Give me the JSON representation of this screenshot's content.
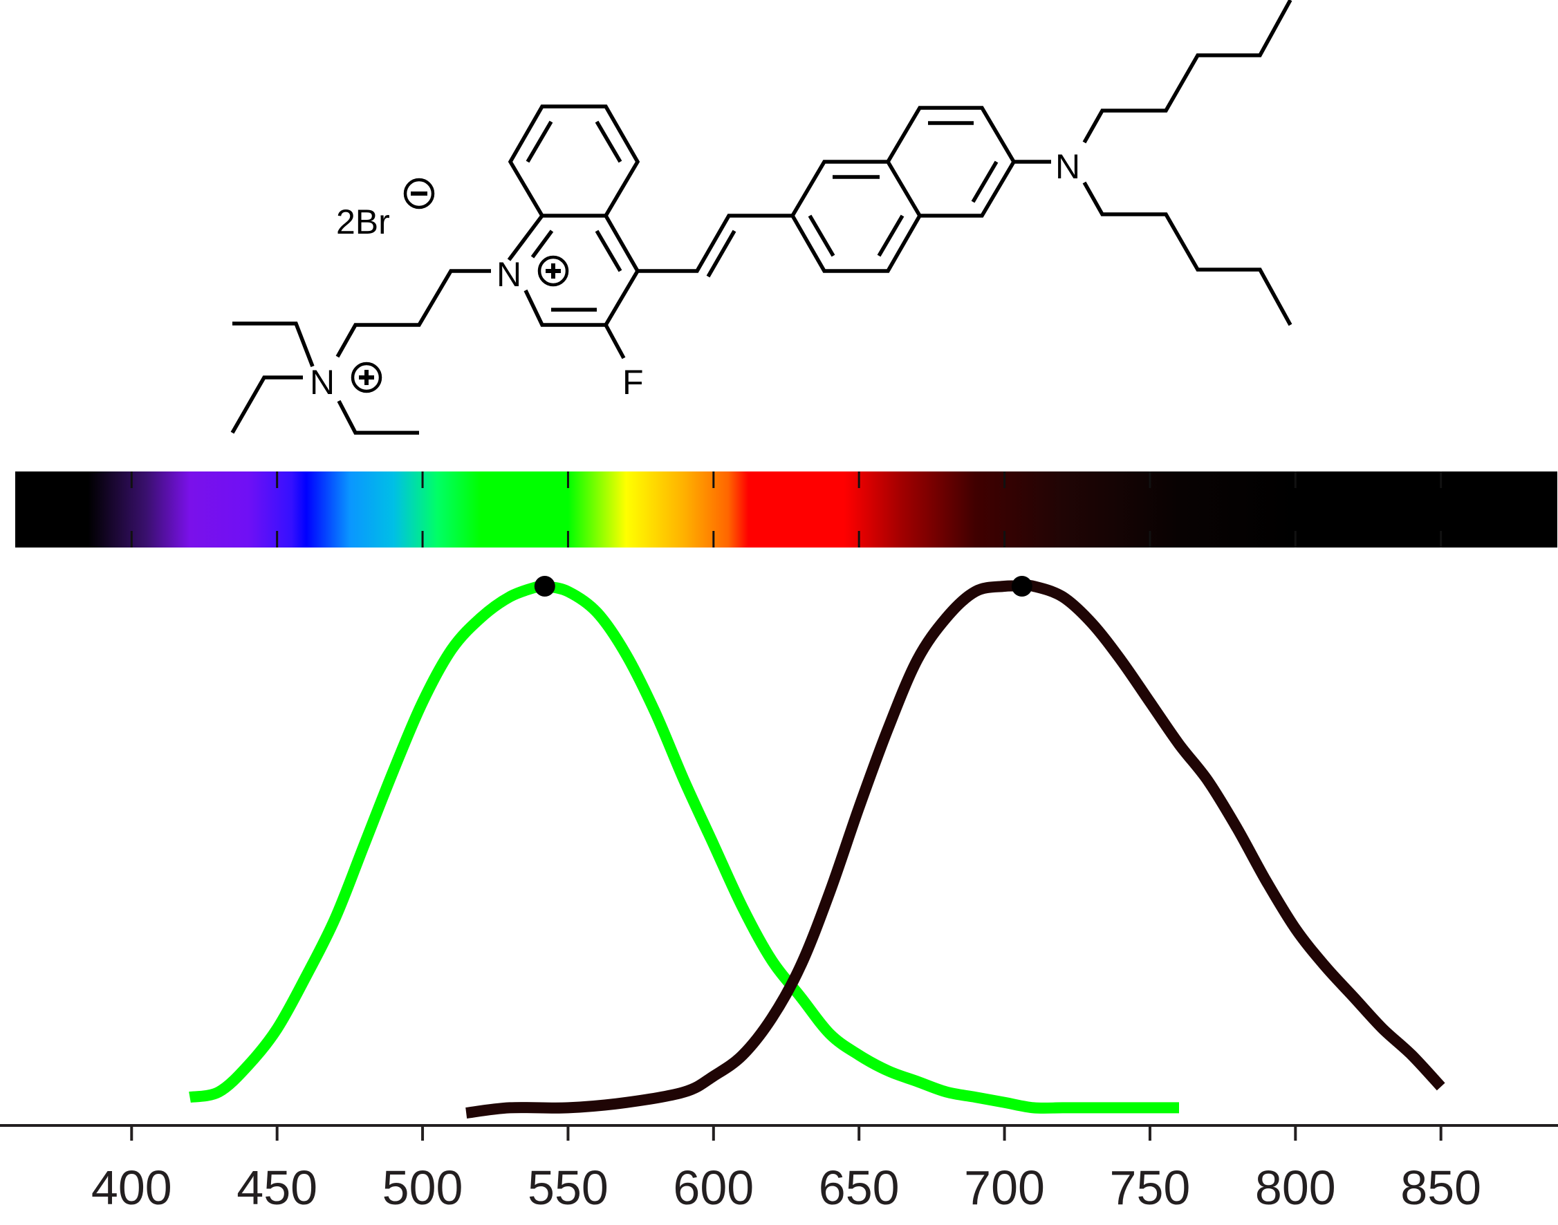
{
  "structure": {
    "counterion": "2Br",
    "atoms": {
      "n_quinolinium": "N",
      "n_ammonium": "N",
      "n_amine": "N",
      "fluorine": "F"
    }
  },
  "chart_data": {
    "type": "line",
    "title": "",
    "xlabel": "",
    "ylabel": "",
    "xlim": [
      360,
      890
    ],
    "ylim": [
      0,
      1
    ],
    "xticks": [
      400,
      450,
      500,
      550,
      600,
      650,
      700,
      750,
      800,
      850
    ],
    "spectrum_bar": {
      "range": [
        360,
        890
      ],
      "stops": [
        {
          "nm": 360,
          "color": "#000000"
        },
        {
          "nm": 385,
          "color": "#000000"
        },
        {
          "nm": 405,
          "color": "#3a106e"
        },
        {
          "nm": 420,
          "color": "#7a11ea"
        },
        {
          "nm": 440,
          "color": "#7010f5"
        },
        {
          "nm": 455,
          "color": "#3510ff"
        },
        {
          "nm": 460,
          "color": "#0000ff"
        },
        {
          "nm": 475,
          "color": "#0a96ff"
        },
        {
          "nm": 490,
          "color": "#00bfe6"
        },
        {
          "nm": 505,
          "color": "#00ff66"
        },
        {
          "nm": 520,
          "color": "#00ff00"
        },
        {
          "nm": 550,
          "color": "#00ff00"
        },
        {
          "nm": 570,
          "color": "#ffff00"
        },
        {
          "nm": 590,
          "color": "#ffb000"
        },
        {
          "nm": 605,
          "color": "#ff6600"
        },
        {
          "nm": 612,
          "color": "#ff0000"
        },
        {
          "nm": 645,
          "color": "#ff0000"
        },
        {
          "nm": 665,
          "color": "#a00000"
        },
        {
          "nm": 690,
          "color": "#400000"
        },
        {
          "nm": 720,
          "color": "#200505"
        },
        {
          "nm": 760,
          "color": "#080202"
        },
        {
          "nm": 800,
          "color": "#000000"
        },
        {
          "nm": 890,
          "color": "#000000"
        }
      ]
    },
    "series": [
      {
        "color": "#00ff00",
        "peak": 542,
        "x": [
          420,
          430,
          440,
          450,
          460,
          470,
          480,
          490,
          500,
          510,
          520,
          530,
          540,
          542,
          550,
          560,
          570,
          580,
          590,
          600,
          610,
          620,
          630,
          640,
          650,
          660,
          670,
          680,
          690,
          700,
          710,
          720,
          730,
          740,
          750,
          760
        ],
        "y": [
          0.03,
          0.04,
          0.09,
          0.16,
          0.26,
          0.37,
          0.51,
          0.65,
          0.78,
          0.88,
          0.94,
          0.98,
          1.0,
          1.0,
          0.99,
          0.95,
          0.87,
          0.76,
          0.63,
          0.51,
          0.39,
          0.29,
          0.22,
          0.15,
          0.11,
          0.08,
          0.06,
          0.04,
          0.03,
          0.02,
          0.01,
          0.01,
          0.01,
          0.01,
          0.01,
          0.01
        ]
      },
      {
        "color": "#1f0505",
        "peak": 706,
        "x": [
          515,
          530,
          550,
          570,
          590,
          600,
          610,
          620,
          630,
          640,
          650,
          660,
          670,
          680,
          690,
          700,
          706,
          710,
          720,
          730,
          740,
          750,
          760,
          770,
          780,
          790,
          800,
          810,
          820,
          830,
          840,
          850
        ],
        "y": [
          0.0,
          0.01,
          0.01,
          0.02,
          0.04,
          0.07,
          0.11,
          0.18,
          0.28,
          0.42,
          0.58,
          0.73,
          0.86,
          0.94,
          0.99,
          1.0,
          1.0,
          1.0,
          0.98,
          0.93,
          0.86,
          0.78,
          0.7,
          0.63,
          0.54,
          0.44,
          0.35,
          0.28,
          0.22,
          0.16,
          0.11,
          0.05
        ]
      }
    ]
  }
}
